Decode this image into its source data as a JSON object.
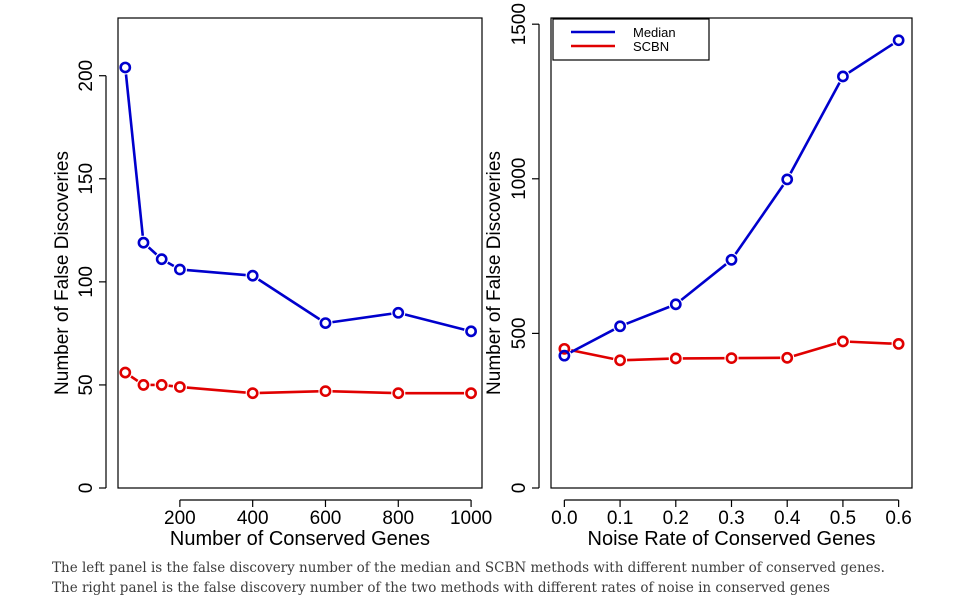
{
  "chart_data": [
    {
      "type": "line",
      "xlabel": "Number of Conserved Genes",
      "ylabel": "Number of False Discoveries",
      "x": [
        50,
        100,
        150,
        200,
        400,
        600,
        800,
        1000
      ],
      "xlim": [
        30,
        1030
      ],
      "ylim": [
        0,
        228
      ],
      "xticks": [
        200,
        400,
        600,
        800,
        1000
      ],
      "xtick_labels": [
        "200",
        "400",
        "600",
        "800",
        "1000"
      ],
      "yticks": [
        0,
        50,
        100,
        150,
        200
      ],
      "ytick_labels": [
        "0",
        "50",
        "100",
        "150",
        "200"
      ],
      "grid": false,
      "series": [
        {
          "name": "Median",
          "color": "#0000cd",
          "values": [
            204,
            119,
            111,
            106,
            103,
            80,
            85,
            76
          ]
        },
        {
          "name": "SCBN",
          "color": "#e00000",
          "values": [
            56,
            50,
            50,
            49,
            46,
            47,
            46,
            46
          ]
        }
      ]
    },
    {
      "type": "line",
      "xlabel": "Noise Rate of Conserved Genes",
      "ylabel": "Number of False Discoveries",
      "x": [
        0.0,
        0.1,
        0.2,
        0.3,
        0.4,
        0.5,
        0.6
      ],
      "xlim": [
        -0.024,
        0.624
      ],
      "ylim": [
        0,
        1520
      ],
      "xticks": [
        0.0,
        0.1,
        0.2,
        0.3,
        0.4,
        0.5,
        0.6
      ],
      "xtick_labels": [
        "0.0",
        "0.1",
        "0.2",
        "0.3",
        "0.4",
        "0.5",
        "0.6"
      ],
      "yticks": [
        0,
        500,
        1000,
        1500
      ],
      "ytick_labels": [
        "0",
        "500",
        "1000",
        "1500"
      ],
      "grid": false,
      "legend": {
        "placement": "top-left",
        "entries": [
          "Median",
          "SCBN"
        ]
      },
      "series": [
        {
          "name": "Median",
          "color": "#0000cd",
          "values": [
            428,
            523,
            594,
            738,
            998,
            1331,
            1448
          ]
        },
        {
          "name": "SCBN",
          "color": "#e00000",
          "values": [
            450,
            413,
            419,
            420,
            421,
            474,
            466
          ]
        }
      ]
    }
  ],
  "caption": "The left panel is the false discovery number of the median and SCBN methods with different number of conserved genes. The right panel is the false discovery number of the two methods with different rates of noise in conserved genes"
}
